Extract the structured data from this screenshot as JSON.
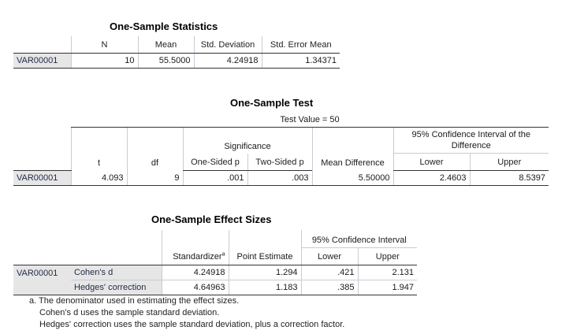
{
  "stats": {
    "title": "One-Sample Statistics",
    "headers": [
      "N",
      "Mean",
      "Std. Deviation",
      "Std. Error Mean"
    ],
    "row": {
      "label": "VAR00001",
      "n": "10",
      "mean": "55.5000",
      "sd": "4.24918",
      "sem": "1.34371"
    }
  },
  "test": {
    "title": "One-Sample Test",
    "test_value": "Test Value = 50",
    "significance": "Significance",
    "ci_title": "95% Confidence Interval of the Difference",
    "headers": {
      "t": "t",
      "df": "df",
      "one_sided": "One-Sided p",
      "two_sided": "Two-Sided p",
      "mean_diff": "Mean Difference",
      "lower": "Lower",
      "upper": "Upper"
    },
    "row": {
      "label": "VAR00001",
      "t": "4.093",
      "df": "9",
      "one_sided": ".001",
      "two_sided": ".003",
      "mean_diff": "5.50000",
      "lower": "2.4603",
      "upper": "8.5397"
    }
  },
  "effect": {
    "title": "One-Sample Effect Sizes",
    "ci_title": "95% Confidence Interval",
    "headers": {
      "standardizer": "Standardizer",
      "standardizer_sup": "a",
      "point": "Point Estimate",
      "lower": "Lower",
      "upper": "Upper"
    },
    "var_label": "VAR00001",
    "rows": [
      {
        "label": "Cohen's d",
        "standardizer": "4.24918",
        "point": "1.294",
        "lower": ".421",
        "upper": "2.131"
      },
      {
        "label": "Hedges' correction",
        "standardizer": "4.64963",
        "point": "1.183",
        "lower": ".385",
        "upper": "1.947"
      }
    ],
    "footnotes": [
      "a. The denominator used in estimating the effect sizes.",
      "Cohen's d uses the sample standard deviation.",
      "Hedges' correction uses the sample standard deviation, plus a correction factor."
    ]
  }
}
